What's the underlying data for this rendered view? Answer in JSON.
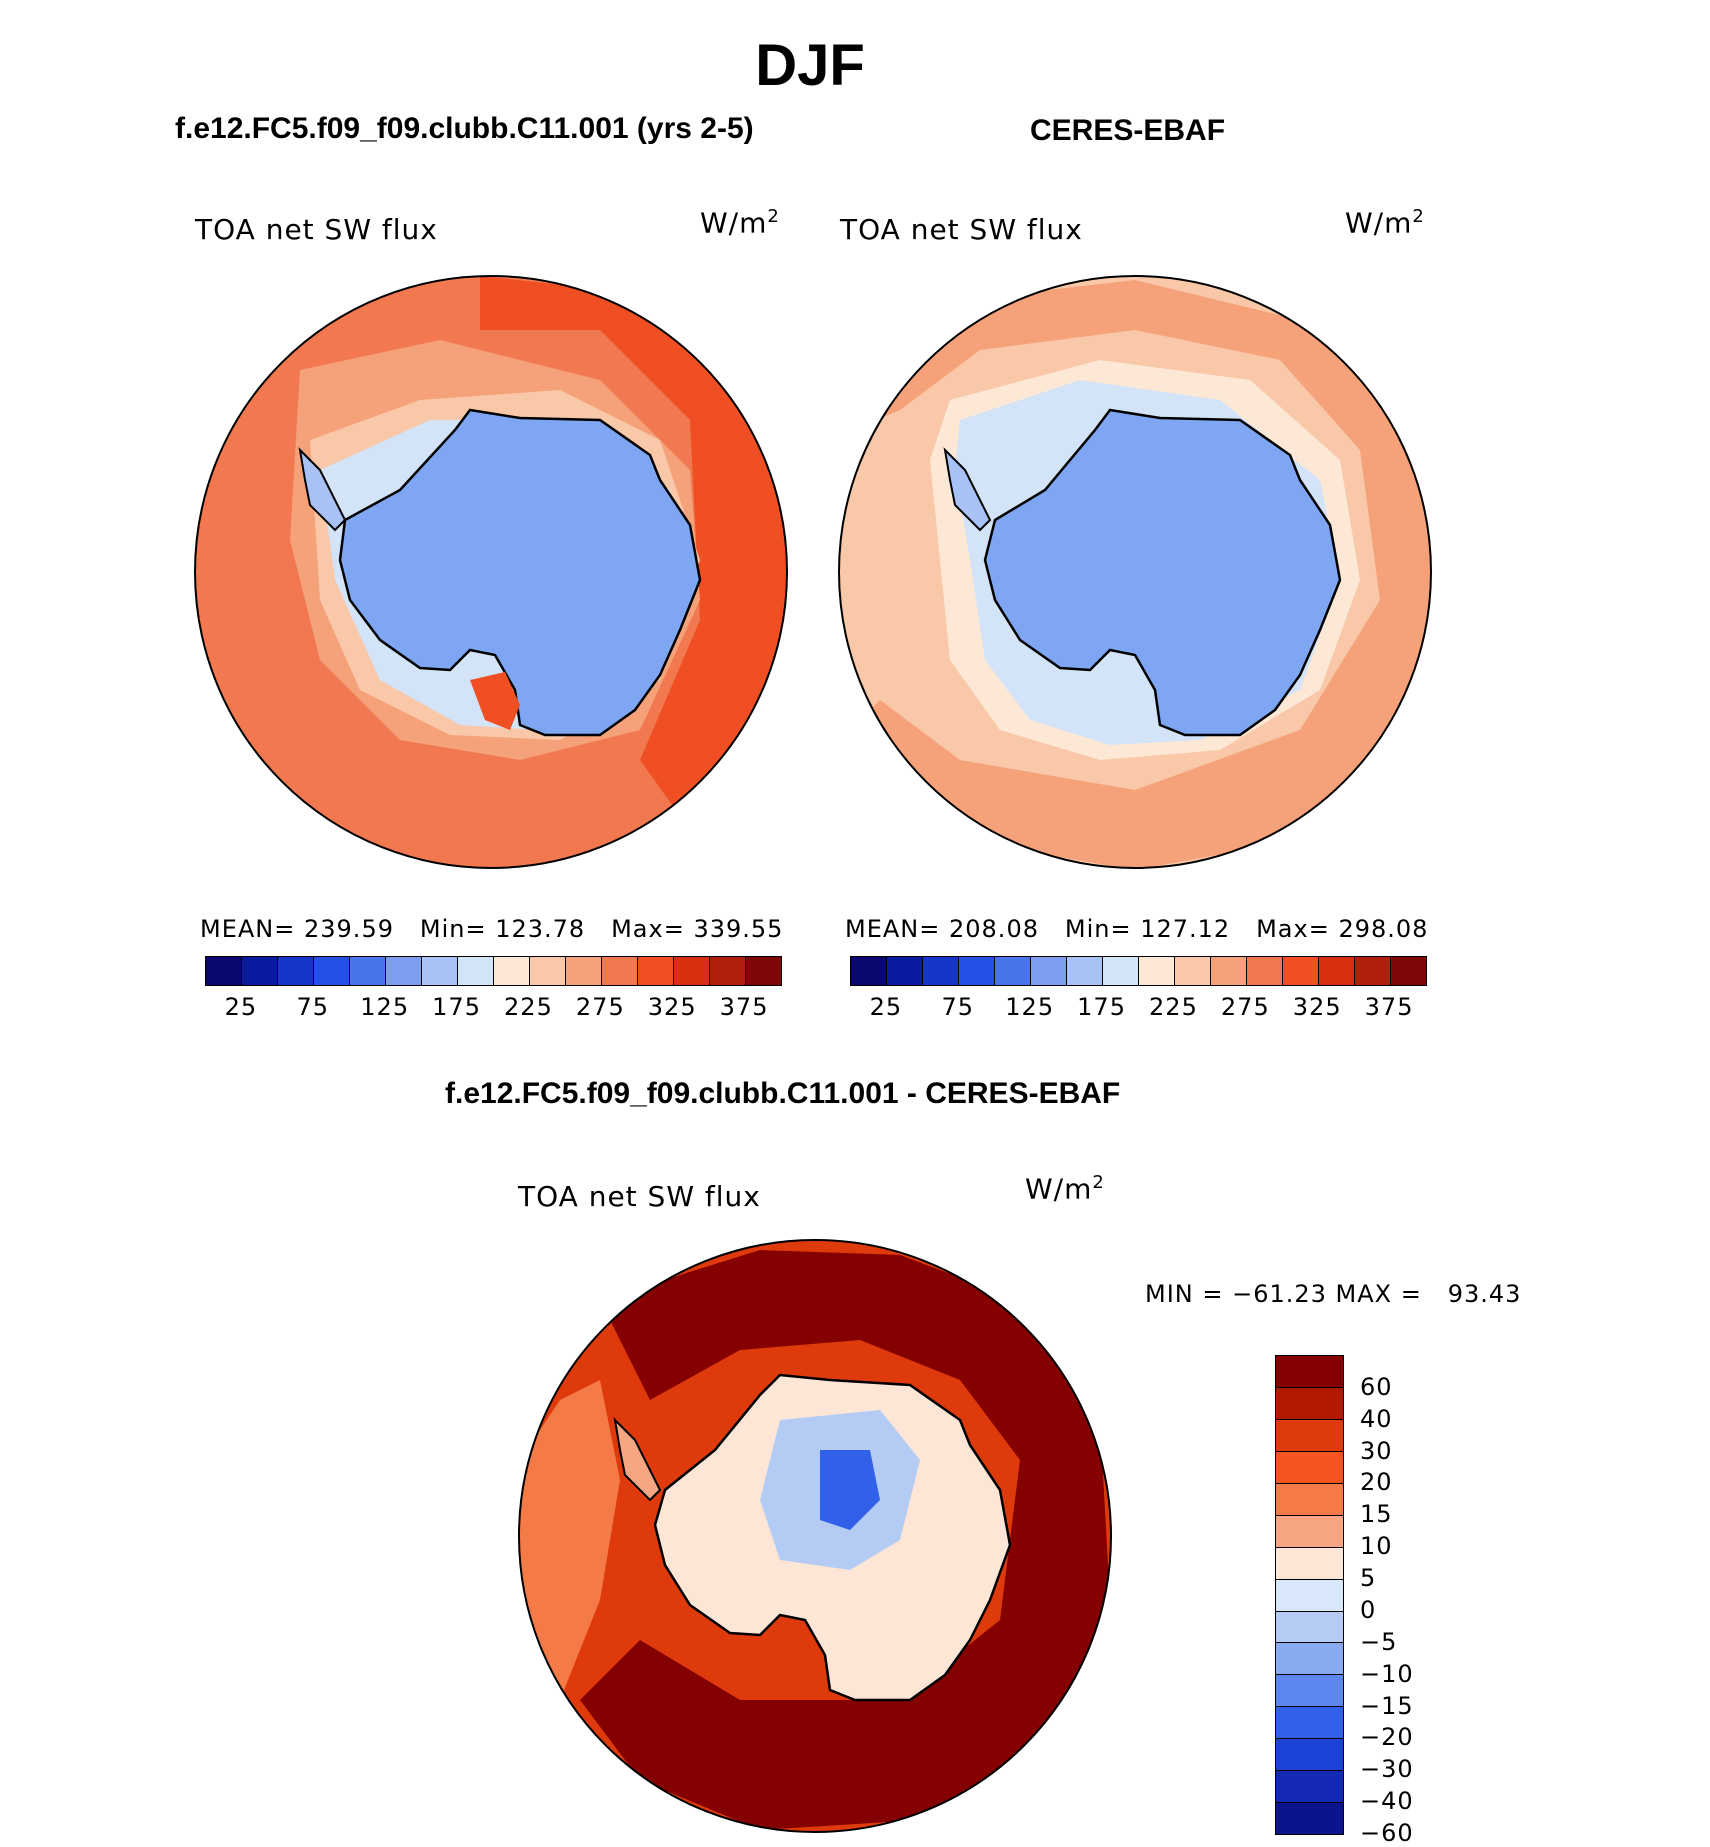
{
  "page_title": "DJF",
  "colors": {
    "abs_scale": [
      "#08086e",
      "#0a1aa0",
      "#1536c8",
      "#2550e6",
      "#4a74ea",
      "#7b9ef0",
      "#a9c2f5",
      "#d3e3f8",
      "#fde8d6",
      "#f9c8a8",
      "#f5a27a",
      "#f1784f",
      "#f04f24",
      "#d8300f",
      "#b01e0c",
      "#7e0808"
    ],
    "diff_scale": [
      "#850000",
      "#b21a00",
      "#de3a0c",
      "#f45520",
      "#f47a48",
      "#f6a682",
      "#fde6d6",
      "#d8e8fa",
      "#b4ccf4",
      "#88aaf0",
      "#5d86ee",
      "#3161e8",
      "#1d42d6",
      "#1328b4",
      "#0b148c"
    ],
    "land_model": "#7ea6f2",
    "land_obs": "#7ea6f2",
    "coast": "#000000"
  },
  "panels": {
    "left": {
      "title": "f.e12.FC5.f09_f09.clubb.C11.001 (yrs 2-5)",
      "variable": "TOA net SW flux",
      "units": "W/m",
      "units_exp": "2",
      "mean_label": "MEAN=",
      "mean": "239.59",
      "min_label": "Min=",
      "min": "123.78",
      "max_label": "Max=",
      "max": "339.55"
    },
    "right": {
      "title": "CERES-EBAF",
      "variable": "TOA net SW flux",
      "units": "W/m",
      "units_exp": "2",
      "mean_label": "MEAN=",
      "mean": "208.08",
      "min_label": "Min=",
      "min": "127.12",
      "max_label": "Max=",
      "max": "298.08"
    },
    "diff": {
      "title": "f.e12.FC5.f09_f09.clubb.C11.001 - CERES-EBAF",
      "variable": "TOA net SW flux",
      "units": "W/m",
      "units_exp": "2",
      "minmax": "MIN = −61.23 MAX =   93.43"
    }
  },
  "colorbar_abs": {
    "ticks": [
      "25",
      "75",
      "125",
      "175",
      "225",
      "275",
      "325",
      "375"
    ]
  },
  "colorbar_diff": {
    "ticks": [
      "60",
      "40",
      "30",
      "20",
      "15",
      "10",
      "5",
      "0",
      "−5",
      "−10",
      "−15",
      "−20",
      "−30",
      "−40",
      "−60"
    ]
  }
}
